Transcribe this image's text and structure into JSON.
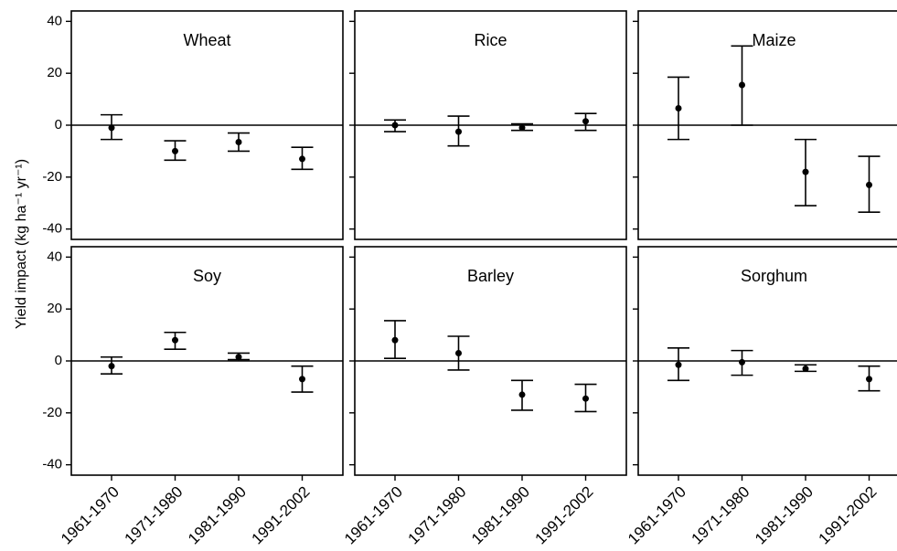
{
  "y_label": "Yield impact (kg ha⁻¹ yr⁻¹)",
  "chart_data": [
    {
      "type": "errorbar",
      "title": "Wheat",
      "values": [
        -1,
        -10,
        -6.5,
        -13
      ],
      "lows": [
        -5.5,
        -13.5,
        -10,
        -17
      ],
      "highs": [
        4,
        -6,
        -3,
        -8.5
      ],
      "ylim": [
        -44,
        44
      ],
      "yticks": [
        -40,
        -20,
        0,
        20,
        40
      ],
      "reference_line": 0,
      "color": "#000000"
    },
    {
      "type": "errorbar",
      "title": "Rice",
      "values": [
        0,
        -2.5,
        -1,
        1.5
      ],
      "lows": [
        -2.5,
        -8,
        -2,
        -2
      ],
      "highs": [
        2,
        3.5,
        0.5,
        4.5
      ],
      "ylim": [
        -44,
        44
      ],
      "yticks": [
        -40,
        -20,
        0,
        20,
        40
      ],
      "reference_line": 0,
      "color": "#000000"
    },
    {
      "type": "errorbar",
      "title": "Maize",
      "values": [
        6.5,
        15.5,
        -18,
        -23
      ],
      "lows": [
        -5.5,
        0,
        -31,
        -33.5
      ],
      "highs": [
        18.5,
        30.5,
        -5.5,
        -12
      ],
      "ylim": [
        -44,
        44
      ],
      "yticks": [
        -40,
        -20,
        0,
        20,
        40
      ],
      "reference_line": 0,
      "color": "#000000"
    },
    {
      "type": "errorbar",
      "title": "Soy",
      "categories": [
        "1961-1970",
        "1971-1980",
        "1981-1990",
        "1991-2002"
      ],
      "values": [
        -2,
        8,
        1.5,
        -7
      ],
      "lows": [
        -5,
        4.5,
        0.5,
        -12
      ],
      "highs": [
        1.5,
        11,
        3,
        -2
      ],
      "ylim": [
        -44,
        44
      ],
      "yticks": [
        -40,
        -20,
        0,
        20,
        40
      ],
      "reference_line": 0,
      "color": "#000000"
    },
    {
      "type": "errorbar",
      "title": "Barley",
      "categories": [
        "1961-1970",
        "1971-1980",
        "1981-1990",
        "1991-2002"
      ],
      "values": [
        8,
        3,
        -13,
        -14.5
      ],
      "lows": [
        1,
        -3.5,
        -19,
        -19.5
      ],
      "highs": [
        15.5,
        9.5,
        -7.5,
        -9
      ],
      "ylim": [
        -44,
        44
      ],
      "yticks": [
        -40,
        -20,
        0,
        20,
        40
      ],
      "reference_line": 0,
      "color": "#000000"
    },
    {
      "type": "errorbar",
      "title": "Sorghum",
      "categories": [
        "1961-1970",
        "1971-1980",
        "1981-1990",
        "1991-2002"
      ],
      "values": [
        -1.5,
        -0.5,
        -3,
        -7
      ],
      "lows": [
        -7.5,
        -5.5,
        -4,
        -11.5
      ],
      "highs": [
        5,
        4,
        -1.5,
        -2
      ],
      "ylim": [
        -44,
        44
      ],
      "yticks": [
        -40,
        -20,
        0,
        20,
        40
      ],
      "reference_line": 0,
      "color": "#000000"
    }
  ]
}
